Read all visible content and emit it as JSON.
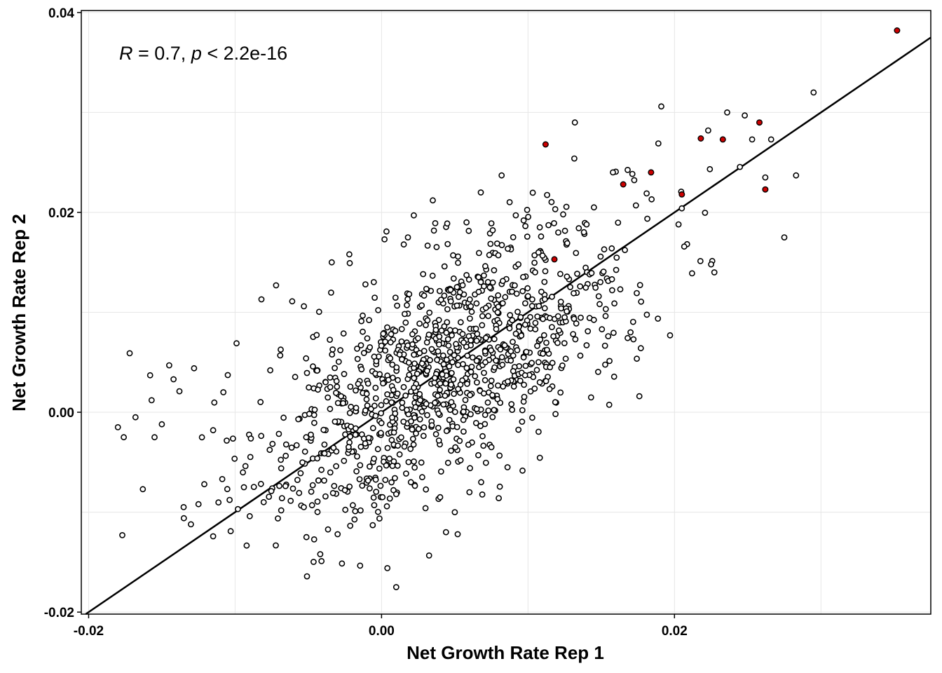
{
  "chart_data": {
    "type": "scatter",
    "title": "",
    "xlabel": "Net Growth Rate Rep 1",
    "ylabel": "Net Growth Rate Rep 2",
    "xlim": [
      -0.0205,
      0.0375
    ],
    "ylim": [
      -0.0202,
      0.0402
    ],
    "x_ticks": [
      -0.02,
      0.0,
      0.02
    ],
    "y_ticks": [
      -0.02,
      0.0,
      0.02,
      0.04
    ],
    "x_tick_labels": [
      "-0.02",
      "0.00",
      "0.02"
    ],
    "y_tick_labels": [
      "-0.02",
      "0.00",
      "0.02",
      "0.04"
    ],
    "grid": true,
    "annotation": {
      "r_symbol": "R",
      "r_text": " = 0.7, ",
      "p_symbol": "p",
      "p_text": " < 2.2e-16"
    },
    "fit_line": {
      "slope": 1.0,
      "intercept": 0.0
    },
    "colors": {
      "open_point_fill": "#ffffff",
      "highlight_fill": "#cc0000",
      "point_stroke": "#000000",
      "line": "#000000"
    },
    "highlighted_points": [
      [
        0.0112,
        0.0268
      ],
      [
        0.0118,
        0.0153
      ],
      [
        0.0165,
        0.0228
      ],
      [
        0.0184,
        0.024
      ],
      [
        0.0205,
        0.0218
      ],
      [
        0.0218,
        0.0274
      ],
      [
        0.0233,
        0.0273
      ],
      [
        0.0258,
        0.029
      ],
      [
        0.0262,
        0.0223
      ],
      [
        0.0352,
        0.0382
      ]
    ],
    "outlier_points": [
      [
        -0.018,
        -0.0015
      ],
      [
        -0.0176,
        -0.0025
      ],
      [
        -0.0177,
        -0.0123
      ],
      [
        -0.0172,
        0.0059
      ],
      [
        -0.0168,
        -0.0005
      ],
      [
        -0.0163,
        -0.0077
      ],
      [
        -0.0158,
        0.0037
      ],
      [
        -0.0157,
        0.0012
      ],
      [
        -0.0155,
        -0.0025
      ],
      [
        -0.015,
        -0.0012
      ],
      [
        -0.0145,
        0.0047
      ],
      [
        -0.0142,
        0.0033
      ],
      [
        -0.0138,
        0.0021
      ],
      [
        -0.0135,
        -0.0106
      ],
      [
        -0.0128,
        0.0044
      ],
      [
        -0.0125,
        -0.0092
      ],
      [
        -0.0121,
        -0.0072
      ],
      [
        -0.0115,
        -0.0018
      ],
      [
        -0.0108,
        0.002
      ],
      [
        -0.0103,
        -0.0119
      ],
      [
        -0.0099,
        0.0069
      ],
      [
        -0.0094,
        -0.0075
      ],
      [
        -0.009,
        -0.0104
      ],
      [
        -0.0082,
        0.0113
      ],
      [
        -0.0076,
        0.0042
      ],
      [
        -0.0072,
        0.0127
      ],
      [
        -0.0068,
        -0.0086
      ],
      [
        -0.0061,
        0.0111
      ],
      [
        -0.0058,
        -0.0033
      ],
      [
        -0.0053,
        0.0106
      ],
      [
        -0.0047,
        -0.0073
      ],
      [
        -0.0041,
        -0.0149
      ],
      [
        -0.0034,
        0.015
      ],
      [
        -0.003,
        -0.0122
      ],
      [
        -0.0022,
        0.0158
      ],
      [
        -0.0018,
        -0.0099
      ],
      [
        -0.0011,
        0.0128
      ],
      [
        -0.0006,
        -0.0113
      ],
      [
        0.0002,
        0.0173
      ],
      [
        0.0004,
        -0.0156
      ],
      [
        0.001,
        -0.0175
      ],
      [
        0.0018,
        0.0175
      ],
      [
        0.0022,
        0.0197
      ],
      [
        0.0035,
        0.0212
      ],
      [
        0.0044,
        -0.012
      ],
      [
        0.0052,
        -0.0122
      ],
      [
        0.0058,
        0.019
      ],
      [
        0.0075,
        0.0189
      ],
      [
        0.0082,
        0.0237
      ],
      [
        0.0097,
        0.0192
      ],
      [
        0.0108,
        0.0185
      ],
      [
        0.0124,
        0.0198
      ],
      [
        0.0132,
        0.029
      ],
      [
        0.0145,
        0.0205
      ],
      [
        0.0152,
        0.0163
      ],
      [
        0.0163,
        0.0123
      ],
      [
        0.017,
        0.008
      ],
      [
        0.0172,
        0.0073
      ],
      [
        0.0176,
        0.0016
      ],
      [
        0.0181,
        0.0219
      ],
      [
        0.0191,
        0.0306
      ],
      [
        0.0197,
        0.0077
      ],
      [
        0.0205,
        0.0204
      ],
      [
        0.0212,
        0.0139
      ],
      [
        0.0225,
        0.0148
      ],
      [
        0.0236,
        0.03
      ],
      [
        0.0248,
        0.0297
      ],
      [
        0.0253,
        0.0273
      ],
      [
        0.0262,
        0.0235
      ],
      [
        0.0275,
        0.0175
      ],
      [
        0.0283,
        0.0237
      ],
      [
        0.0295,
        0.032
      ],
      [
        0.0266,
        0.0273
      ],
      [
        0.0223,
        0.0282
      ],
      [
        0.0189,
        0.0269
      ],
      [
        0.0158,
        0.024
      ],
      [
        0.014,
        0.0188
      ],
      [
        0.0125,
        0.0095
      ],
      [
        0.0115,
        0.0045
      ],
      [
        0.0108,
        0.003
      ],
      [
        0.0105,
        0.0083
      ],
      [
        0.0098,
        0.0037
      ],
      [
        0.0086,
        -0.0055
      ],
      [
        0.008,
        -0.0086
      ],
      [
        0.0075,
        -0.0035
      ],
      [
        0.0068,
        -0.007
      ],
      [
        0.006,
        -0.008
      ],
      [
        0.005,
        -0.01
      ],
      [
        0.004,
        -0.0085
      ],
      [
        0.003,
        -0.0096
      ],
      [
        0.002,
        -0.007
      ],
      [
        0.001,
        -0.0082
      ],
      [
        -0.0005,
        -0.0093
      ],
      [
        -0.0015,
        -0.0067
      ],
      [
        -0.0025,
        -0.0078
      ]
    ]
  }
}
